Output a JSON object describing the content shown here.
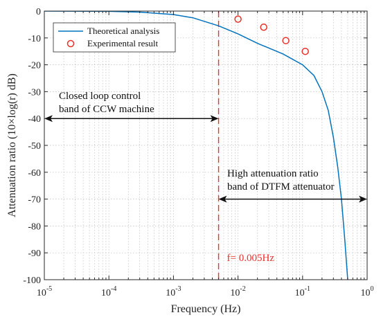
{
  "chart_data": {
    "type": "line",
    "xscale": "log",
    "xlim": [
      1e-05,
      1
    ],
    "ylim": [
      -100,
      0
    ],
    "grid": true,
    "xlabel": "Frequency (Hz)",
    "ylabel": "Attenuation ratio (10×log(r) dB)",
    "x_ticks": [
      {
        "value": 1e-05,
        "base": "10",
        "exp": "-5"
      },
      {
        "value": 0.0001,
        "base": "10",
        "exp": "-4"
      },
      {
        "value": 0.001,
        "base": "10",
        "exp": "-3"
      },
      {
        "value": 0.01,
        "base": "10",
        "exp": "-2"
      },
      {
        "value": 0.1,
        "base": "10",
        "exp": "-1"
      },
      {
        "value": 1,
        "base": "10",
        "exp": "0"
      }
    ],
    "y_ticks": [
      0,
      -10,
      -20,
      -30,
      -40,
      -50,
      -60,
      -70,
      -80,
      -90,
      -100
    ],
    "legend_position": "top-left",
    "series": [
      {
        "name": "Theoretical analysis",
        "style": "line",
        "color": "#0072BD",
        "x": [
          1e-05,
          0.0001,
          0.0003,
          0.001,
          0.002,
          0.005,
          0.01,
          0.02,
          0.05,
          0.1,
          0.15,
          0.2,
          0.25,
          0.3,
          0.35,
          0.4,
          0.45,
          0.5
        ],
        "y": [
          0,
          -0.1,
          -0.4,
          -1.3,
          -2.5,
          -5.5,
          -8.5,
          -12,
          -16,
          -20,
          -24,
          -30,
          -37,
          -47,
          -58,
          -70,
          -85,
          -100
        ]
      },
      {
        "name": "Experimental result",
        "style": "marker",
        "color": "#e8312a",
        "x": [
          0.01,
          0.025,
          0.055,
          0.11
        ],
        "y": [
          -3,
          -6,
          -11,
          -15
        ]
      }
    ],
    "reference_line": {
      "x": 0.005,
      "color": "#e8312a",
      "label": "f= 0.005Hz"
    },
    "annotations": [
      {
        "lines": [
          "Closed loop control",
          "band of CCW machine"
        ],
        "arrow_from": 1e-05,
        "arrow_to": 0.005,
        "arrow_y": -40
      },
      {
        "lines": [
          "High attenuation ratio",
          "band of DTFM attenuator"
        ],
        "arrow_from": 0.005,
        "arrow_to": 1,
        "arrow_y": -70
      }
    ]
  }
}
